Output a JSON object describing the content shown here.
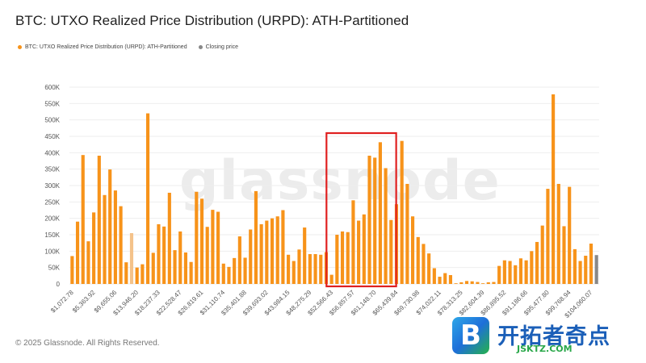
{
  "title": "BTC: UTXO Realized Price Distribution (URPD): ATH-Partitioned",
  "legend": [
    {
      "label": "BTC: UTXO Realized Price Distribution (URPD): ATH-Partitioned",
      "color": "#f7931a"
    },
    {
      "label": "Closing price",
      "color": "#888888"
    }
  ],
  "watermark": "glassnode",
  "footer": "© 2025 Glassnode. All Rights Reserved.",
  "brand": {
    "logo_letter": "B",
    "name": "开拓者奇点",
    "url": "JSKTZ.COM"
  },
  "chart_data": {
    "type": "bar",
    "title": "BTC: UTXO Realized Price Distribution (URPD): ATH-Partitioned",
    "xlabel": "",
    "ylabel": "",
    "ylim": [
      0,
      600000
    ],
    "yticks": [
      0,
      50000,
      100000,
      150000,
      200000,
      250000,
      300000,
      350000,
      400000,
      450000,
      500000,
      550000,
      600000
    ],
    "ytick_labels": [
      "0",
      "50K",
      "100K",
      "150K",
      "200K",
      "250K",
      "300K",
      "350K",
      "400K",
      "450K",
      "500K",
      "550K",
      "600K"
    ],
    "x_tick_labels": [
      "$1,072.78",
      "$5,363.92",
      "$9,655.06",
      "$13,946.20",
      "$18,237.33",
      "$22,528.47",
      "$26,819.61",
      "$31,110.74",
      "$35,401.88",
      "$39,693.02",
      "$43,984.15",
      "$48,275.29",
      "$52,566.43",
      "$56,857.57",
      "$61,148.70",
      "$65,439.84",
      "$69,730.98",
      "$74,022.11",
      "$78,313.25",
      "$82,604.39",
      "$86,895.52",
      "$91,186.66",
      "$95,477.80",
      "$99,768.94",
      "$104,060.07"
    ],
    "highlight_box": {
      "from_bar": 48,
      "to_bar": 59,
      "color": "#e02020"
    },
    "series": [
      {
        "name": "BTC: UTXO Realized Price Distribution (URPD): ATH-Partitioned",
        "color": "#f7931a",
        "values": [
          85000,
          190000,
          393000,
          130000,
          218000,
          391000,
          271000,
          349000,
          285000,
          237000,
          66000,
          155000,
          50000,
          60000,
          520000,
          95000,
          182000,
          175000,
          278000,
          103000,
          160000,
          96000,
          67000,
          281000,
          260000,
          174000,
          226000,
          220000,
          62000,
          52000,
          79000,
          145000,
          80000,
          166000,
          283000,
          182000,
          193000,
          200000,
          206000,
          225000,
          89000,
          70000,
          105000,
          172000,
          91000,
          91000,
          89000,
          97000,
          28000,
          150000,
          160000,
          158000,
          255000,
          193000,
          212000,
          391000,
          385000,
          432000,
          353000,
          195000,
          243000,
          436000,
          305000,
          206000,
          143000,
          122000,
          93000,
          48000,
          22000,
          33000,
          27000,
          2000,
          5000,
          9000,
          8000,
          6000,
          2000,
          5000,
          6000,
          55000,
          72000,
          70000,
          57000,
          78000,
          72000,
          100000,
          128000,
          178000,
          290000,
          578000,
          305000,
          176000,
          296000,
          106000,
          70000,
          86000,
          123000
        ],
        "faded": [
          11
        ]
      },
      {
        "name": "Closing price",
        "color": "#888888",
        "values": [
          88000
        ]
      }
    ]
  }
}
